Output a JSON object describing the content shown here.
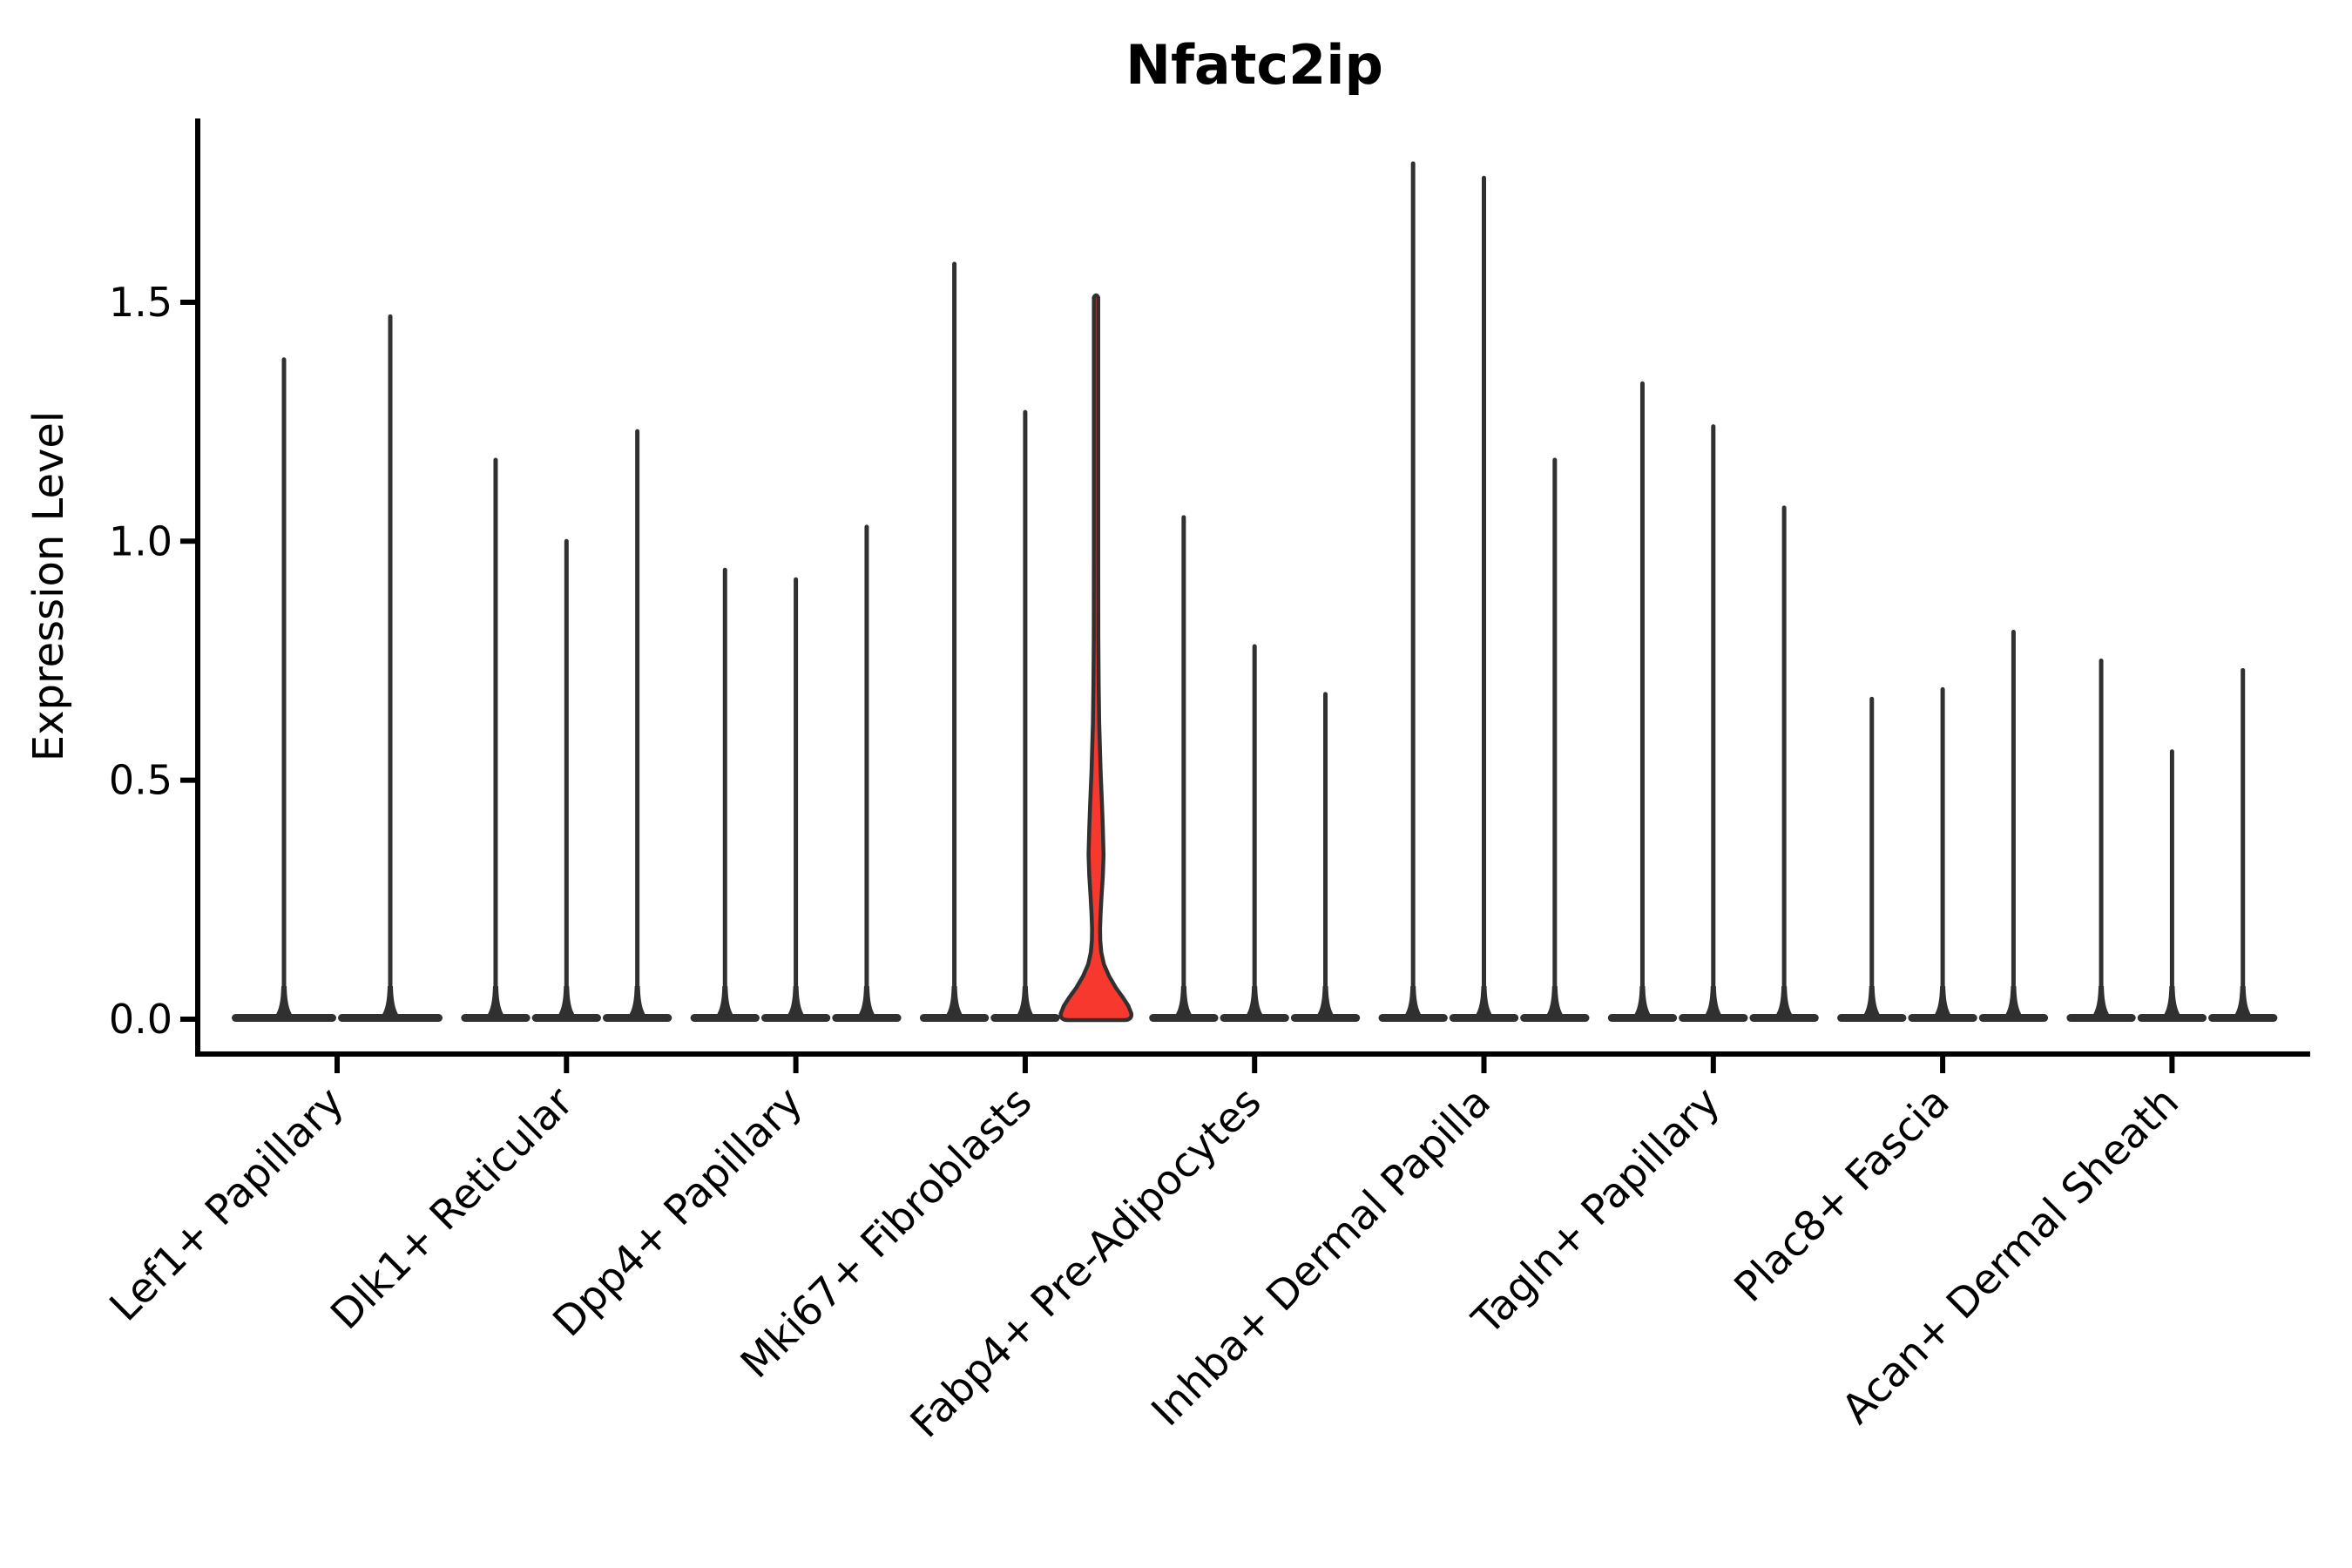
{
  "title": "Nfatc2ip",
  "y_axis": {
    "label": "Expression Level",
    "ticks": [
      {
        "label": "0.0",
        "value": 0.0
      },
      {
        "label": "0.5",
        "value": 0.5
      },
      {
        "label": "1.0",
        "value": 1.0
      },
      {
        "label": "1.5",
        "value": 1.5
      }
    ]
  },
  "chart_data": {
    "type": "violin",
    "title": "Nfatc2ip",
    "xlabel": "",
    "ylabel": "Expression Level",
    "ytick_labels": [
      "0.0",
      "0.5",
      "1.0",
      "1.5"
    ],
    "ylim": [
      -0.08,
      1.88
    ],
    "grid": false,
    "legend": "none",
    "categories": [
      "Lef1+ Papillary",
      "Dlk1+ Reticular",
      "Dpp4+ Papillary",
      "Mki67+ Fibroblasts",
      "Fabp4+ Pre-Adipocytes",
      "Inhba+ Dermal Papilla",
      "Tagln+ Papillary",
      "Plac8+ Fascia",
      "Acan+ Dermal Sheath"
    ],
    "groups": [
      {
        "category": "Lef1+ Papillary",
        "violin_max_values": [
          1.38,
          1.47
        ]
      },
      {
        "category": "Dlk1+ Reticular",
        "violin_max_values": [
          1.17,
          1.0,
          1.23
        ]
      },
      {
        "category": "Dpp4+ Papillary",
        "violin_max_values": [
          0.94,
          0.92,
          1.03
        ]
      },
      {
        "category": "Mki67+ Fibroblasts",
        "violin_max_values": [
          1.58,
          1.27,
          1.51
        ]
      },
      {
        "category": "Fabp4+ Pre-Adipocytes",
        "violin_max_values": [
          1.05,
          0.78,
          0.68
        ]
      },
      {
        "category": "Inhba+ Dermal Papilla",
        "violin_max_values": [
          1.79,
          1.76,
          1.17
        ]
      },
      {
        "category": "Tagln+ Papillary",
        "violin_max_values": [
          1.33,
          1.24,
          1.07
        ]
      },
      {
        "category": "Plac8+ Fascia",
        "violin_max_values": [
          0.67,
          0.69,
          0.81
        ]
      },
      {
        "category": "Acan+ Dermal Sheath",
        "violin_max_values": [
          0.75,
          0.56,
          0.73
        ]
      }
    ],
    "highlighted_violin": {
      "category": "Mki67+ Fibroblasts",
      "violin_index": 2,
      "max": 1.51,
      "fill": "#F6382F",
      "profile": [
        [
          1.51,
          2.5
        ],
        [
          1.0,
          2.5
        ],
        [
          0.8,
          2.6
        ],
        [
          0.7,
          3.0
        ],
        [
          0.62,
          3.6
        ],
        [
          0.52,
          5.2
        ],
        [
          0.45,
          6.8
        ],
        [
          0.4,
          7.8
        ],
        [
          0.344,
          8.6
        ],
        [
          0.3,
          7.8
        ],
        [
          0.26,
          6.4
        ],
        [
          0.22,
          5.2
        ],
        [
          0.19,
          4.6
        ],
        [
          0.165,
          4.8
        ],
        [
          0.14,
          6.0
        ],
        [
          0.115,
          9.0
        ],
        [
          0.09,
          15.0
        ],
        [
          0.065,
          23.0
        ],
        [
          0.045,
          31.0
        ],
        [
          0.028,
          37.0
        ],
        [
          0.012,
          40.5
        ]
      ]
    },
    "colors": {
      "violin_stroke": "#303030",
      "axis": "#000000",
      "text": "#000000",
      "background": "#ffffff",
      "highlight_fill": "#F6382F"
    }
  }
}
